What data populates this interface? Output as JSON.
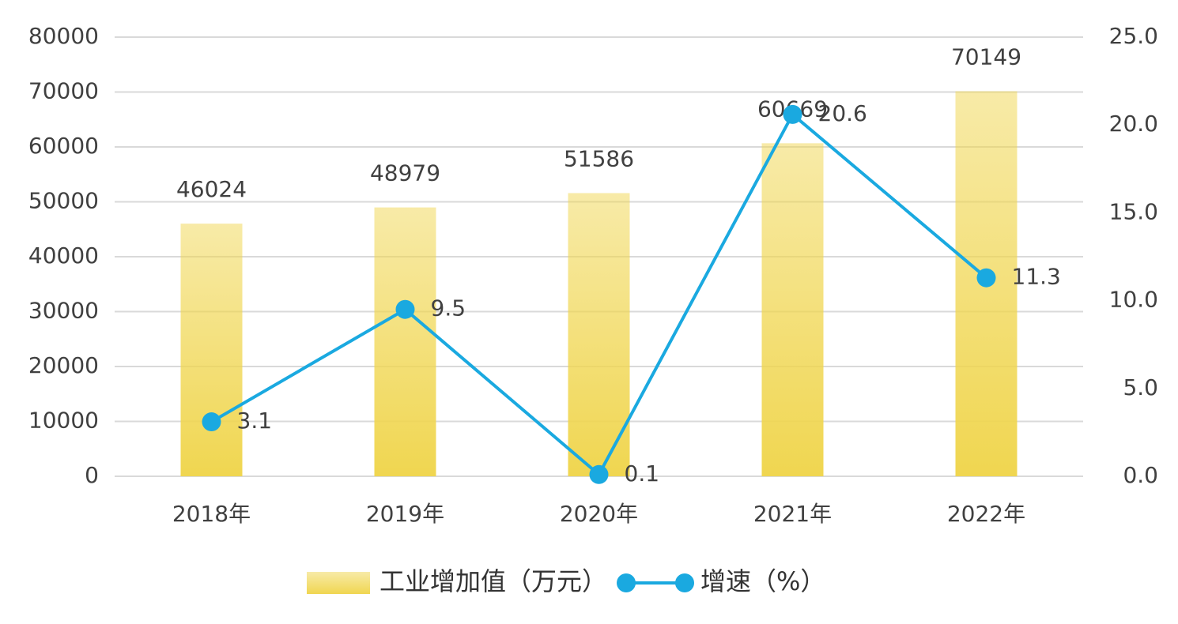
{
  "chart_data": {
    "type": "combo",
    "categories": [
      "2018年",
      "2019年",
      "2020年",
      "2021年",
      "2022年"
    ],
    "series": [
      {
        "name": "工业增加值（万元）",
        "type": "bar",
        "color": "#f0d650",
        "values": [
          46024,
          48979,
          51586,
          60669,
          70149
        ]
      },
      {
        "name": "增速（%）",
        "type": "line",
        "axis": "y2",
        "color": "#1aa9e0",
        "values": [
          3.1,
          9.5,
          0.1,
          20.6,
          11.3
        ]
      }
    ],
    "ylim": [
      0,
      80000
    ],
    "yticks": [
      0,
      10000,
      20000,
      30000,
      40000,
      50000,
      60000,
      70000,
      80000
    ],
    "y2lim": [
      0,
      25
    ],
    "y2ticks": [
      {
        "value": 0,
        "label": "0.0"
      },
      {
        "value": 5,
        "label": "5.0"
      },
      {
        "value": 10,
        "label": "10.0"
      },
      {
        "value": 15,
        "label": "15.0"
      },
      {
        "value": 20,
        "label": "20.0"
      },
      {
        "value": 25,
        "label": "25.0"
      }
    ],
    "grid": true,
    "legend": "bottom"
  }
}
